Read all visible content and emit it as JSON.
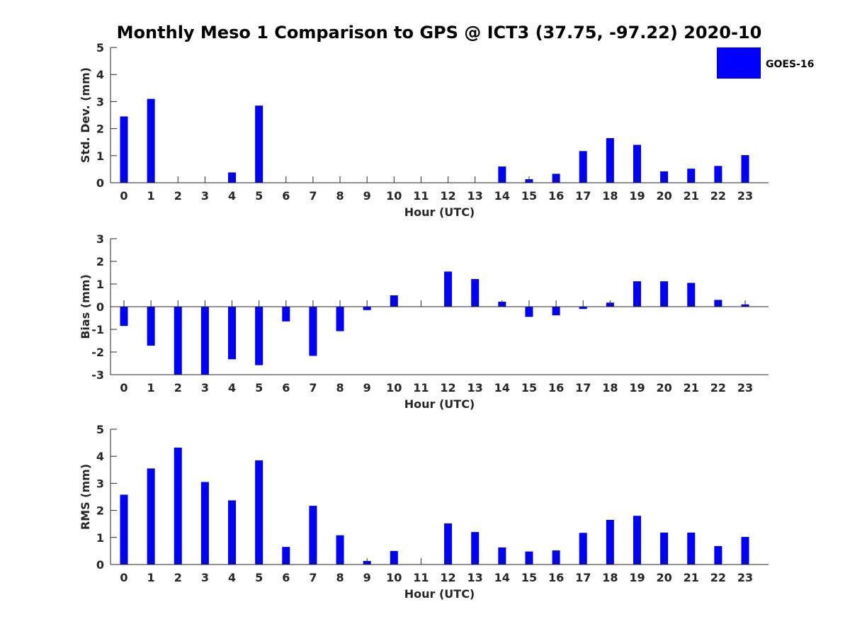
{
  "title": "Monthly Meso 1 Comparison to GPS @ ICT3 (37.75, -97.22) 2020-10",
  "legend": {
    "label": "GOES-16",
    "color": "#0000ff",
    "placement": "top-right"
  },
  "chart_data": [
    {
      "type": "bar",
      "xlabel": "Hour (UTC)",
      "ylabel": "Std. Dev. (mm)",
      "ylim": [
        0,
        5
      ],
      "yticks": [
        0,
        1,
        2,
        3,
        4,
        5
      ],
      "grid": false,
      "categories": [
        "0",
        "1",
        "2",
        "3",
        "4",
        "5",
        "6",
        "7",
        "8",
        "9",
        "10",
        "11",
        "12",
        "13",
        "14",
        "15",
        "16",
        "17",
        "18",
        "19",
        "20",
        "21",
        "22",
        "23"
      ],
      "series": [
        {
          "name": "GOES-16",
          "color": "#0000ff",
          "values": [
            2.45,
            3.1,
            0,
            0,
            0.38,
            2.85,
            0,
            0,
            0,
            0,
            0,
            0,
            0,
            0,
            0.6,
            0.13,
            0.33,
            1.17,
            1.65,
            1.4,
            0.42,
            0.52,
            0.62,
            1.02
          ]
        }
      ]
    },
    {
      "type": "bar",
      "xlabel": "Hour (UTC)",
      "ylabel": "Bias (mm)",
      "ylim": [
        -3,
        3
      ],
      "yticks": [
        -3,
        -2,
        -1,
        0,
        1,
        2,
        3
      ],
      "grid": false,
      "categories": [
        "0",
        "1",
        "2",
        "3",
        "4",
        "5",
        "6",
        "7",
        "8",
        "9",
        "10",
        "11",
        "12",
        "13",
        "14",
        "15",
        "16",
        "17",
        "18",
        "19",
        "20",
        "21",
        "22",
        "23"
      ],
      "series": [
        {
          "name": "GOES-16",
          "color": "#0000ff",
          "values": [
            -0.85,
            -1.72,
            -3.0,
            -3.0,
            -2.32,
            -2.58,
            -0.65,
            -2.17,
            -1.08,
            -0.15,
            0.5,
            0,
            1.55,
            1.22,
            0.22,
            -0.45,
            -0.38,
            -0.1,
            0.18,
            1.12,
            1.12,
            1.05,
            0.3,
            0.1
          ]
        }
      ]
    },
    {
      "type": "bar",
      "xlabel": "Hour (UTC)",
      "ylabel": "RMS (mm)",
      "ylim": [
        0,
        5
      ],
      "yticks": [
        0,
        1,
        2,
        3,
        4,
        5
      ],
      "grid": false,
      "categories": [
        "0",
        "1",
        "2",
        "3",
        "4",
        "5",
        "6",
        "7",
        "8",
        "9",
        "10",
        "11",
        "12",
        "13",
        "14",
        "15",
        "16",
        "17",
        "18",
        "19",
        "20",
        "21",
        "22",
        "23"
      ],
      "series": [
        {
          "name": "GOES-16",
          "color": "#0000ff",
          "values": [
            2.58,
            3.55,
            4.32,
            3.05,
            2.37,
            3.85,
            0.65,
            2.17,
            1.08,
            0.13,
            0.5,
            0,
            1.52,
            1.2,
            0.63,
            0.48,
            0.52,
            1.17,
            1.65,
            1.8,
            1.18,
            1.18,
            0.68,
            1.02
          ]
        }
      ]
    }
  ]
}
